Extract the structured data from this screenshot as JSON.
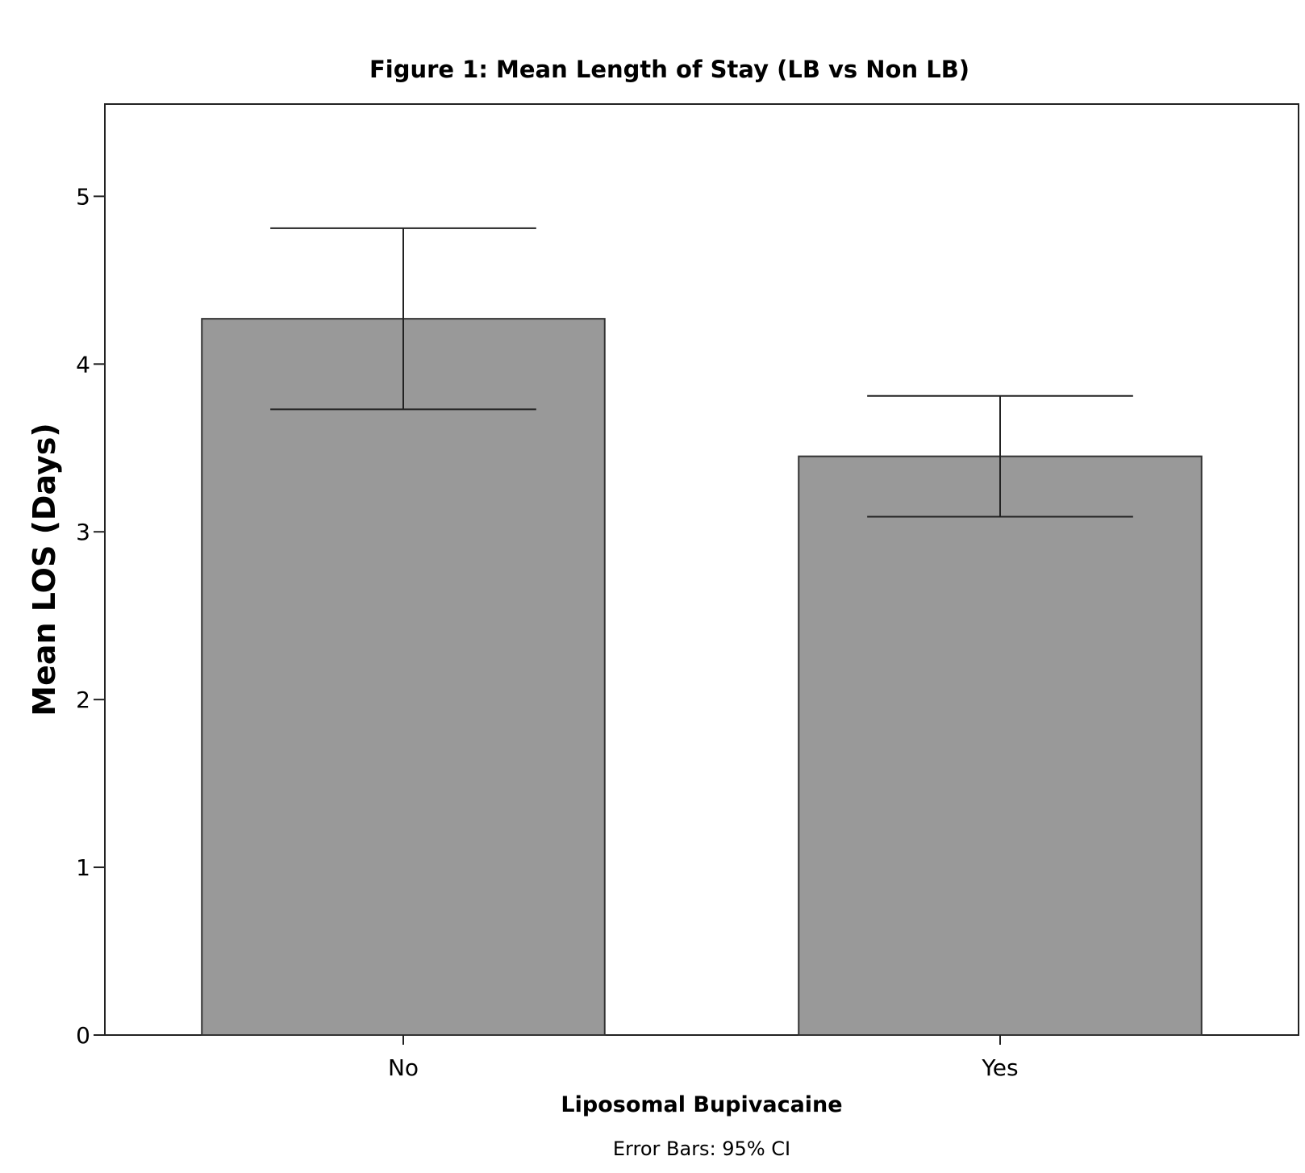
{
  "chart_data": {
    "type": "bar",
    "title": "Figure 1: Mean Length of Stay (LB vs Non LB)",
    "xlabel": "Liposomal Bupivacaine",
    "ylabel": "Mean LOS (Days)",
    "footnote": "Error Bars: 95% CI",
    "categories": [
      "No",
      "Yes"
    ],
    "values": [
      4.27,
      3.45
    ],
    "ci_lower": [
      3.73,
      3.09
    ],
    "ci_upper": [
      4.81,
      3.81
    ],
    "ylim": [
      0,
      5.55
    ],
    "yticks": [
      0,
      1,
      2,
      3,
      4,
      5
    ],
    "grid": false,
    "bar_color": "#999999",
    "bar_edge_color": "#333333"
  }
}
